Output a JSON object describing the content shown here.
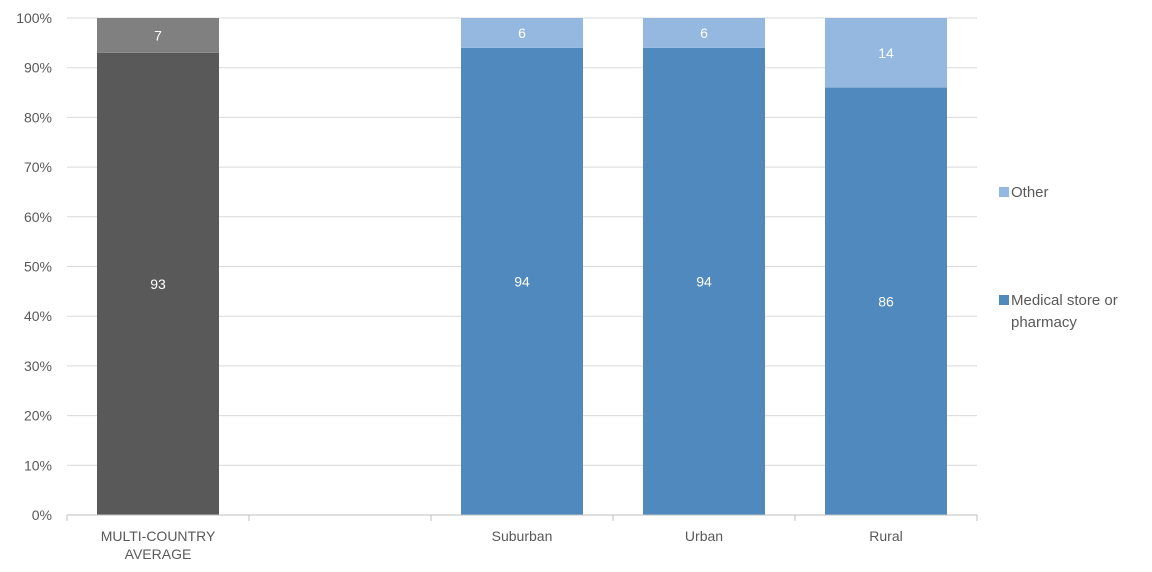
{
  "chart_data": {
    "type": "bar",
    "stacked": true,
    "percent": true,
    "categories": [
      "MULTI-COUNTRY AVERAGE",
      "",
      "Suburban",
      "Urban",
      "Rural"
    ],
    "series": [
      {
        "name": "Medical store or pharmacy",
        "values": [
          93,
          null,
          94,
          94,
          86
        ]
      },
      {
        "name": "Other",
        "values": [
          7,
          null,
          6,
          6,
          14
        ]
      }
    ],
    "colors": {
      "average_primary": "#595959",
      "average_other": "#808080",
      "primary": "#4F89BD",
      "other": "#95B8E0",
      "grid": "#d9d9d9",
      "axis": "#bfbfbf"
    },
    "ylim": [
      0,
      100
    ],
    "yticks": [
      "0%",
      "10%",
      "20%",
      "30%",
      "40%",
      "50%",
      "60%",
      "70%",
      "80%",
      "90%",
      "100%"
    ],
    "grid": true,
    "legend": {
      "position": "right",
      "entries": [
        {
          "label": "Other",
          "series": 1
        },
        {
          "label": "Medical store or pharmacy",
          "series": 0,
          "lines": [
            "Medical store or",
            "pharmacy"
          ]
        }
      ]
    },
    "title": "",
    "xlabel": "",
    "ylabel": ""
  }
}
